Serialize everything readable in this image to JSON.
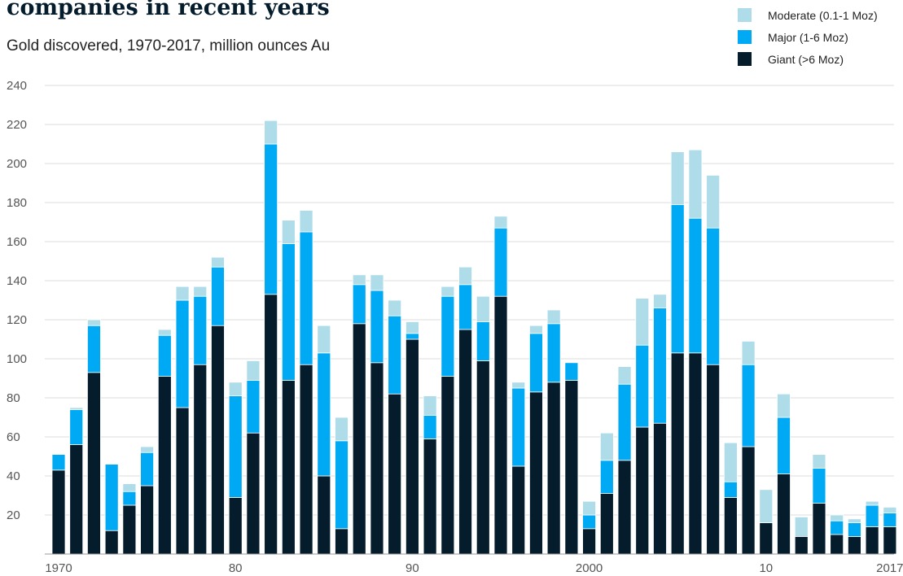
{
  "chart_data": {
    "type": "bar",
    "stacked": true,
    "title": "companies in recent years",
    "subtitle": "Gold discovered, 1970-2017, million ounces Au",
    "xlabel": "",
    "ylabel": "",
    "ylim": [
      0,
      240
    ],
    "yticks": [
      20,
      40,
      60,
      80,
      100,
      120,
      140,
      160,
      180,
      200,
      220,
      240
    ],
    "grid": true,
    "legend_position": "top-right",
    "x": [
      1970,
      1971,
      1972,
      1973,
      1974,
      1975,
      1976,
      1977,
      1978,
      1979,
      1980,
      1981,
      1982,
      1983,
      1984,
      1985,
      1986,
      1987,
      1988,
      1989,
      1990,
      1991,
      1992,
      1993,
      1994,
      1995,
      1996,
      1997,
      1998,
      1999,
      2000,
      2001,
      2002,
      2003,
      2004,
      2005,
      2006,
      2007,
      2008,
      2009,
      2010,
      2011,
      2012,
      2013,
      2014,
      2015,
      2016,
      2017
    ],
    "xtick_labels": [
      {
        "year": 1970,
        "label": "1970"
      },
      {
        "year": 1980,
        "label": "80"
      },
      {
        "year": 1990,
        "label": "90"
      },
      {
        "year": 2000,
        "label": "2000"
      },
      {
        "year": 2010,
        "label": "10"
      },
      {
        "year": 2017,
        "label": "2017"
      }
    ],
    "series": [
      {
        "name": "Giant (>6 Moz)",
        "color": "#051c2c",
        "values": [
          43,
          56,
          93,
          12,
          25,
          35,
          91,
          75,
          97,
          117,
          29,
          62,
          133,
          89,
          97,
          40,
          13,
          118,
          98,
          82,
          110,
          59,
          91,
          115,
          99,
          132,
          45,
          83,
          88,
          89,
          13,
          31,
          48,
          65,
          67,
          103,
          103,
          97,
          29,
          55,
          16,
          41,
          9,
          26,
          10,
          9,
          14,
          14
        ]
      },
      {
        "name": "Major (1-6 Moz)",
        "color": "#00a9f4",
        "values": [
          8,
          18,
          24,
          34,
          7,
          17,
          21,
          55,
          35,
          30,
          52,
          27,
          77,
          70,
          68,
          63,
          45,
          20,
          37,
          40,
          3,
          12,
          41,
          23,
          20,
          35,
          40,
          30,
          30,
          9,
          7,
          17,
          39,
          42,
          59,
          76,
          69,
          70,
          8,
          42,
          0,
          29,
          0,
          18,
          7,
          7,
          11,
          7
        ]
      },
      {
        "name": "Moderate (0.1-1 Moz)",
        "color": "#aedce9",
        "values": [
          0,
          1,
          3,
          0,
          4,
          3,
          3,
          7,
          5,
          5,
          7,
          10,
          12,
          12,
          11,
          14,
          12,
          5,
          8,
          8,
          6,
          10,
          5,
          9,
          13,
          6,
          3,
          4,
          7,
          0,
          7,
          14,
          9,
          24,
          7,
          27,
          35,
          27,
          20,
          12,
          17,
          12,
          10,
          7,
          3,
          2,
          2,
          3
        ]
      }
    ],
    "legend": [
      {
        "label": "Moderate (0.1-1 Moz)",
        "color": "#aedce9"
      },
      {
        "label": "Major (1-6 Moz)",
        "color": "#00a9f4"
      },
      {
        "label": "Giant (>6 Moz)",
        "color": "#051c2c"
      }
    ]
  }
}
